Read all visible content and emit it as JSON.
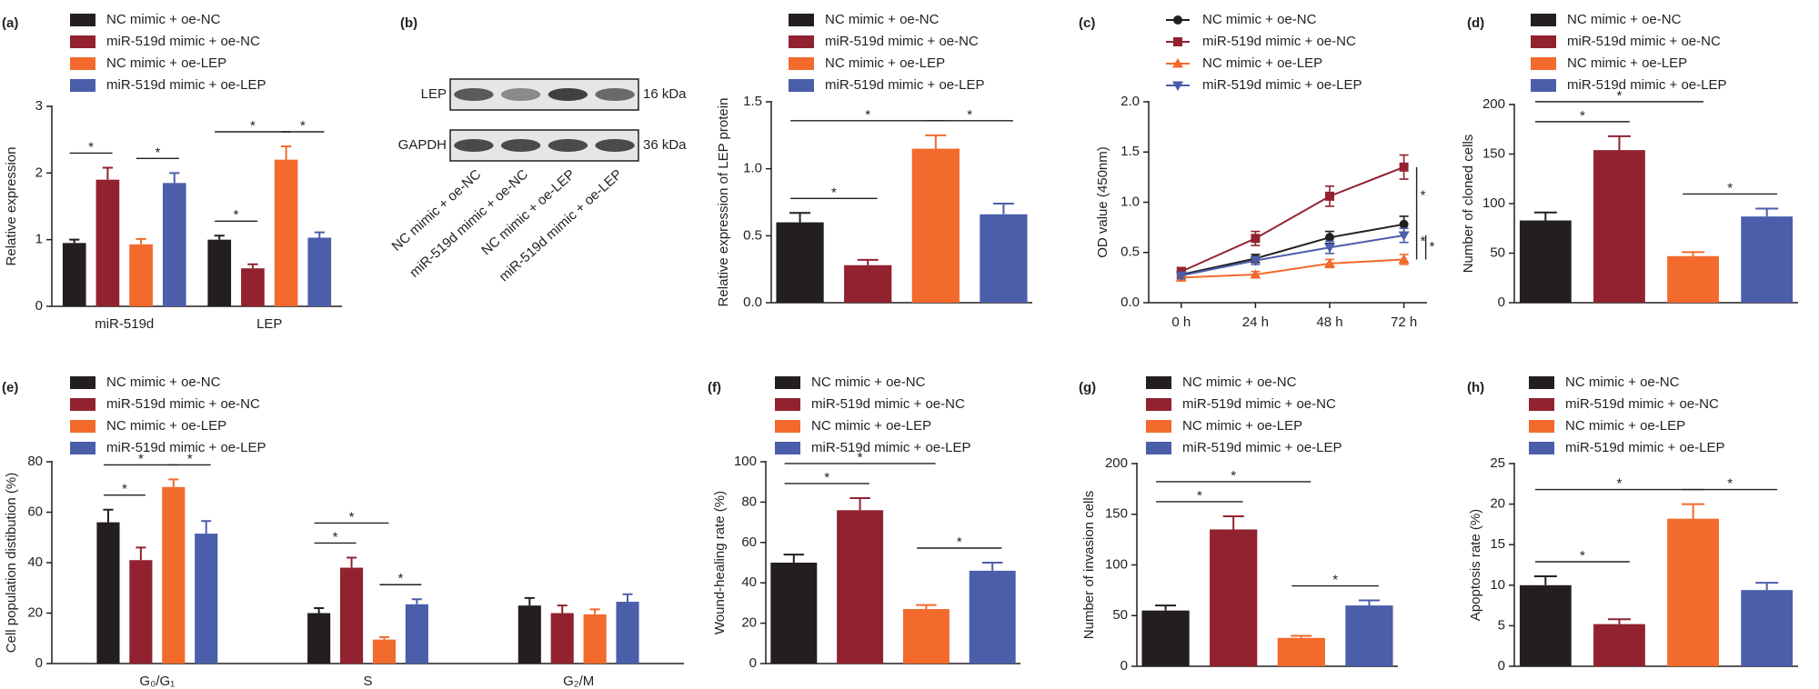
{
  "chart_data": [
    {
      "type": "bar",
      "label": "(a)",
      "y_label": "Relative expression",
      "categories": [
        "miR-519d",
        "LEP"
      ],
      "ylim": [
        0,
        3
      ],
      "yticks": [
        0,
        1,
        2,
        3
      ],
      "series": [
        {
          "name": "NC mimic + oe-NC",
          "color": "#231f20",
          "values": [
            0.95,
            1.0
          ],
          "errors": [
            0.05,
            0.06
          ]
        },
        {
          "name": "miR-519d mimic + oe-NC",
          "color": "#922230",
          "values": [
            1.9,
            0.57
          ],
          "errors": [
            0.18,
            0.06
          ]
        },
        {
          "name": "NC mimic + oe-LEP",
          "color": "#f26a2c",
          "values": [
            0.93,
            2.2
          ],
          "errors": [
            0.08,
            0.2
          ]
        },
        {
          "name": "miR-519d mimic + oe-LEP",
          "color": "#4b5eaa",
          "values": [
            1.85,
            1.03
          ],
          "errors": [
            0.15,
            0.08
          ]
        }
      ],
      "brackets": [
        {
          "text": "*",
          "group": 0,
          "from": 0,
          "to": 1
        },
        {
          "text": "*",
          "group": 0,
          "from": 2,
          "to": 3
        },
        {
          "text": "*",
          "group": 1,
          "from": 0,
          "to": 1
        },
        {
          "text": "*",
          "group": 1,
          "from": 0,
          "to": 2
        },
        {
          "text": "*",
          "group": 1,
          "from": 2,
          "to": 3
        }
      ]
    },
    {
      "type": "bar",
      "label": "(b)",
      "y_label": "Relative expression of LEP protein",
      "categories": [
        null
      ],
      "ylim": [
        0,
        1.5
      ],
      "yticks": [
        {
          "value": 0,
          "label": "0.0"
        },
        0.5,
        {
          "value": 1,
          "label": "1.0"
        },
        1.5
      ],
      "series": [
        {
          "name": "NC mimic + oe-NC",
          "color": "#231f20",
          "values": [
            0.6
          ],
          "errors": [
            0.07
          ]
        },
        {
          "name": "miR-519d mimic + oe-NC",
          "color": "#922230",
          "values": [
            0.28
          ],
          "errors": [
            0.04
          ]
        },
        {
          "name": "NC mimic + oe-LEP",
          "color": "#f26a2c",
          "values": [
            1.15
          ],
          "errors": [
            0.1
          ]
        },
        {
          "name": "miR-519d mimic + oe-LEP",
          "color": "#4b5eaa",
          "values": [
            0.66
          ],
          "errors": [
            0.08
          ]
        }
      ],
      "brackets": [
        {
          "text": "*",
          "group": 0,
          "from": 0,
          "to": 1
        },
        {
          "text": "*",
          "group": 0,
          "from": 0,
          "to": 2
        },
        {
          "text": "*",
          "group": 0,
          "from": 2,
          "to": 3
        }
      ],
      "blot": {
        "rows": [
          {
            "name": "LEP",
            "size": "16 kDa"
          },
          {
            "name": "GAPDH",
            "size": "36 kDa"
          }
        ],
        "lanes": [
          "NC mimic + oe-NC",
          "miR-519d mimic + oe-NC",
          "NC mimic + oe-LEP",
          "miR-519d mimic + oe-LEP"
        ]
      }
    },
    {
      "type": "line",
      "label": "(c)",
      "y_label": "OD value (450nm)",
      "categories": [
        "0 h",
        "24 h",
        "48 h",
        "72 h"
      ],
      "ylim": [
        0,
        2
      ],
      "yticks": [
        {
          "value": 0,
          "label": "0.0"
        },
        0.5,
        {
          "value": 1,
          "label": "1.0"
        },
        1.5,
        {
          "value": 2,
          "label": "2.0"
        }
      ],
      "series": [
        {
          "name": "NC mimic + oe-NC",
          "color": "#231f20",
          "marker": "circle",
          "values": [
            0.28,
            0.44,
            0.65,
            0.78
          ],
          "errors": [
            0.03,
            0.04,
            0.06,
            0.08
          ]
        },
        {
          "name": "miR-519d mimic + oe-NC",
          "color": "#922230",
          "marker": "square",
          "values": [
            0.31,
            0.64,
            1.06,
            1.35
          ],
          "errors": [
            0.04,
            0.07,
            0.1,
            0.12
          ]
        },
        {
          "name": "NC mimic + oe-LEP",
          "color": "#f26a2c",
          "marker": "triangle",
          "values": [
            0.25,
            0.28,
            0.39,
            0.43
          ],
          "errors": [
            0.02,
            0.03,
            0.04,
            0.05
          ]
        },
        {
          "name": "miR-519d mimic + oe-LEP",
          "color": "#4b5eaa",
          "marker": "triangle-down",
          "values": [
            0.27,
            0.42,
            0.55,
            0.67
          ],
          "errors": [
            0.03,
            0.04,
            0.06,
            0.07
          ]
        }
      ],
      "brackets": [
        {
          "text": "*",
          "from": 1,
          "to": 0
        },
        {
          "text": "*",
          "from": 0,
          "to": 2
        },
        {
          "text": "*",
          "from": 3,
          "to": 2
        }
      ]
    },
    {
      "type": "bar",
      "label": "(d)",
      "y_label": "Number of cloned cells",
      "categories": [
        null
      ],
      "ylim": [
        0,
        200
      ],
      "yticks": [
        0,
        50,
        100,
        150,
        200
      ],
      "series": [
        {
          "name": "NC mimic + oe-NC",
          "color": "#231f20",
          "values": [
            83
          ],
          "errors": [
            8
          ]
        },
        {
          "name": "miR-519d mimic + oe-NC",
          "color": "#922230",
          "values": [
            154
          ],
          "errors": [
            14
          ]
        },
        {
          "name": "NC mimic + oe-LEP",
          "color": "#f26a2c",
          "values": [
            47
          ],
          "errors": [
            4
          ]
        },
        {
          "name": "miR-519d mimic + oe-LEP",
          "color": "#4b5eaa",
          "values": [
            87
          ],
          "errors": [
            8
          ]
        }
      ],
      "brackets": [
        {
          "text": "*",
          "group": 0,
          "from": 0,
          "to": 1
        },
        {
          "text": "*",
          "group": 0,
          "from": 0,
          "to": 2
        },
        {
          "text": "*",
          "group": 0,
          "from": 2,
          "to": 3
        }
      ]
    },
    {
      "type": "bar",
      "label": "(e)",
      "y_label": "Cell population distibution (%)",
      "categories": [
        "G₀/G₁",
        "S",
        "G₂/M"
      ],
      "ylim": [
        0,
        80
      ],
      "yticks": [
        0,
        20,
        40,
        60,
        80
      ],
      "series": [
        {
          "name": "NC mimic + oe-NC",
          "color": "#231f20",
          "values": [
            56,
            20,
            23
          ],
          "errors": [
            5,
            2,
            3
          ]
        },
        {
          "name": "miR-519d mimic + oe-NC",
          "color": "#922230",
          "values": [
            41,
            38,
            20
          ],
          "errors": [
            5,
            4,
            3
          ]
        },
        {
          "name": "NC mimic + oe-LEP",
          "color": "#f26a2c",
          "values": [
            70,
            9.5,
            19.5
          ],
          "errors": [
            3,
            1,
            2
          ]
        },
        {
          "name": "miR-519d mimic + oe-LEP",
          "color": "#4b5eaa",
          "values": [
            51.5,
            23.5,
            24.5
          ],
          "errors": [
            5,
            2,
            3
          ]
        }
      ],
      "brackets": [
        {
          "text": "*",
          "group": 0,
          "from": 0,
          "to": 1
        },
        {
          "text": "*",
          "group": 0,
          "from": 0,
          "to": 2
        },
        {
          "text": "*",
          "group": 0,
          "from": 2,
          "to": 3
        },
        {
          "text": "*",
          "group": 1,
          "from": 0,
          "to": 1
        },
        {
          "text": "*",
          "group": 1,
          "from": 0,
          "to": 2
        },
        {
          "text": "*",
          "group": 1,
          "from": 2,
          "to": 3
        }
      ]
    },
    {
      "type": "bar",
      "label": "(f)",
      "y_label": "Wound-healing rate (%)",
      "categories": [
        null
      ],
      "ylim": [
        0,
        100
      ],
      "yticks": [
        0,
        20,
        40,
        60,
        80,
        100
      ],
      "series": [
        {
          "name": "NC mimic + oe-NC",
          "color": "#231f20",
          "values": [
            50
          ],
          "errors": [
            4
          ]
        },
        {
          "name": "miR-519d mimic + oe-NC",
          "color": "#922230",
          "values": [
            76
          ],
          "errors": [
            6
          ]
        },
        {
          "name": "NC mimic + oe-LEP",
          "color": "#f26a2c",
          "values": [
            27
          ],
          "errors": [
            2
          ]
        },
        {
          "name": "miR-519d mimic + oe-LEP",
          "color": "#4b5eaa",
          "values": [
            46
          ],
          "errors": [
            4
          ]
        }
      ],
      "brackets": [
        {
          "text": "*",
          "group": 0,
          "from": 0,
          "to": 1
        },
        {
          "text": "*",
          "group": 0,
          "from": 0,
          "to": 2
        },
        {
          "text": "*",
          "group": 0,
          "from": 2,
          "to": 3
        }
      ]
    },
    {
      "type": "bar",
      "label": "(g)",
      "y_label": "Number of invasion cells",
      "categories": [
        null
      ],
      "ylim": [
        0,
        200
      ],
      "yticks": [
        0,
        50,
        100,
        150,
        200
      ],
      "series": [
        {
          "name": "NC mimic + oe-NC",
          "color": "#231f20",
          "values": [
            55
          ],
          "errors": [
            5
          ]
        },
        {
          "name": "miR-519d mimic + oe-NC",
          "color": "#922230",
          "values": [
            135
          ],
          "errors": [
            13
          ]
        },
        {
          "name": "NC mimic + oe-LEP",
          "color": "#f26a2c",
          "values": [
            28
          ],
          "errors": [
            2
          ]
        },
        {
          "name": "miR-519d mimic + oe-LEP",
          "color": "#4b5eaa",
          "values": [
            60
          ],
          "errors": [
            5
          ]
        }
      ],
      "brackets": [
        {
          "text": "*",
          "group": 0,
          "from": 0,
          "to": 1
        },
        {
          "text": "*",
          "group": 0,
          "from": 0,
          "to": 2
        },
        {
          "text": "*",
          "group": 0,
          "from": 2,
          "to": 3
        }
      ]
    },
    {
      "type": "bar",
      "label": "(h)",
      "y_label": "Apoptosis rate (%)",
      "categories": [
        null
      ],
      "ylim": [
        0,
        25
      ],
      "yticks": [
        0,
        5,
        10,
        15,
        20,
        25
      ],
      "series": [
        {
          "name": "NC mimic + oe-NC",
          "color": "#231f20",
          "values": [
            10
          ],
          "errors": [
            1.1
          ]
        },
        {
          "name": "miR-519d mimic + oe-NC",
          "color": "#922230",
          "values": [
            5.2
          ],
          "errors": [
            0.6
          ]
        },
        {
          "name": "NC mimic + oe-LEP",
          "color": "#f26a2c",
          "values": [
            18.2
          ],
          "errors": [
            1.8
          ]
        },
        {
          "name": "miR-519d mimic + oe-LEP",
          "color": "#4b5eaa",
          "values": [
            9.4
          ],
          "errors": [
            0.9
          ]
        }
      ],
      "brackets": [
        {
          "text": "*",
          "group": 0,
          "from": 0,
          "to": 1
        },
        {
          "text": "*",
          "group": 0,
          "from": 0,
          "to": 2
        },
        {
          "text": "*",
          "group": 0,
          "from": 2,
          "to": 3
        }
      ]
    }
  ]
}
